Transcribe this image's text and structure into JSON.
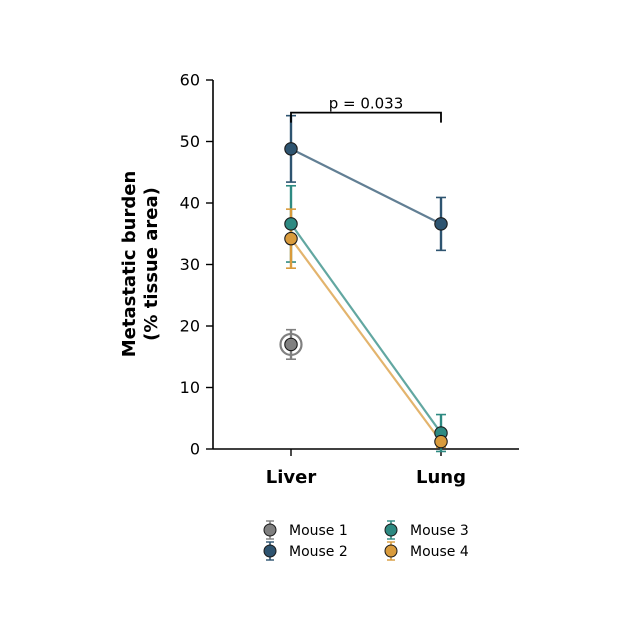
{
  "chart_data": {
    "type": "line",
    "title": "",
    "xlabel": "",
    "ylabel": "Metastatic burden\n(% tissue area)",
    "categories": [
      "Liver",
      "Lung"
    ],
    "ylim": [
      0,
      60
    ],
    "yticks": [
      0,
      10,
      20,
      30,
      40,
      50,
      60
    ],
    "grid": false,
    "legend_position": "bottom",
    "series": [
      {
        "name": "Mouse 1",
        "color": "#808080",
        "values": [
          17.0,
          null
        ],
        "error": [
          2.4,
          null
        ],
        "highlighted": true
      },
      {
        "name": "Mouse 2",
        "color": "#2e5470",
        "values": [
          48.8,
          36.6
        ],
        "error": [
          5.4,
          4.3
        ],
        "highlighted": false
      },
      {
        "name": "Mouse 3",
        "color": "#2e8a82",
        "values": [
          36.6,
          2.6
        ],
        "error": [
          6.2,
          3.0
        ],
        "highlighted": false
      },
      {
        "name": "Mouse 4",
        "color": "#d99b3c",
        "values": [
          34.2,
          1.2
        ],
        "error": [
          4.8,
          0.9
        ],
        "highlighted": false
      }
    ],
    "annotations": [
      {
        "text": "p = 0.033",
        "between": [
          "Liver",
          "Lung"
        ],
        "y": 54.7
      }
    ]
  }
}
